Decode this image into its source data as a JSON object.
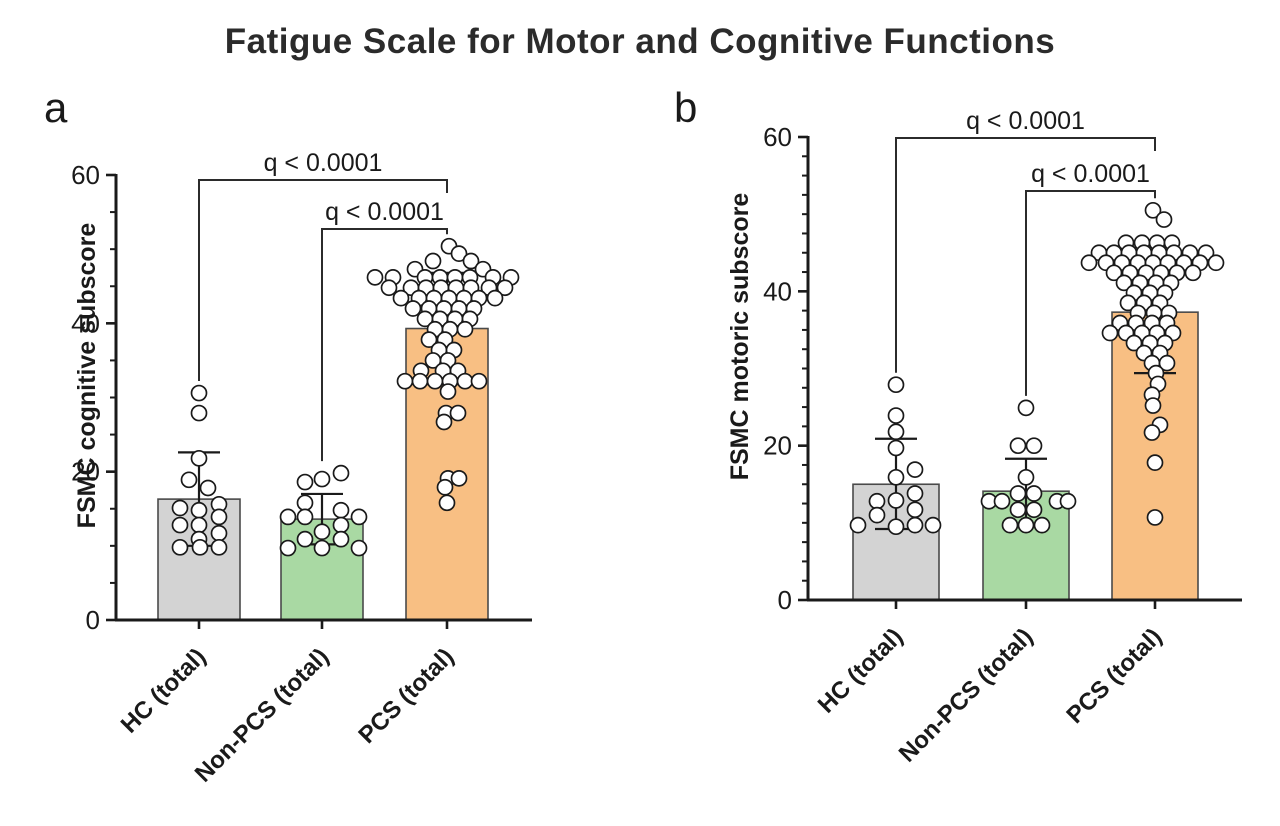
{
  "title": "Fatigue Scale for Motor and Cognitive Functions",
  "styles": {
    "axis_color": "#1a1a1a",
    "bar_edge_color": "#4a4a4a",
    "dot_fill": "#ffffff",
    "dot_stroke": "#1a1a1a",
    "bracket_color": "#2b2b2b"
  },
  "chart_data": [
    {
      "type": "bar",
      "panel_label": "a",
      "ylabel": "FSMC cognitive subscore",
      "ylim": [
        0,
        60
      ],
      "yticks": [
        0,
        20,
        40,
        60
      ],
      "minor_tick_step": 5,
      "grid": "off",
      "categories": [
        "HC (total)",
        "Non-PCS (total)",
        "PCS (total)"
      ],
      "bar_colors": [
        "#d3d3d3",
        "#a9d9a3",
        "#f8bf83"
      ],
      "means": [
        16.3,
        13.6,
        39.3
      ],
      "error_low": [
        10.0,
        10.2,
        31.8
      ],
      "error_high": [
        22.6,
        17.0,
        46.8
      ],
      "comparisons": [
        {
          "label": "q < 0.0001",
          "from": 0,
          "to": 2
        },
        {
          "label": "q < 0.0001",
          "from": 1,
          "to": 2
        }
      ],
      "points": [
        [
          [
            30.6,
            0
          ],
          [
            27.9,
            0
          ],
          [
            21.8,
            0
          ],
          [
            18.9,
            -10
          ],
          [
            17.8,
            9
          ],
          [
            15.6,
            20
          ],
          [
            15.1,
            -19
          ],
          [
            14.8,
            0
          ],
          [
            13.9,
            20
          ],
          [
            12.8,
            -19
          ],
          [
            12.8,
            0
          ],
          [
            11.7,
            20
          ],
          [
            10.9,
            0
          ],
          [
            9.8,
            -19
          ],
          [
            9.8,
            1
          ],
          [
            9.8,
            20
          ]
        ],
        [
          [
            19.8,
            19
          ],
          [
            19.0,
            0
          ],
          [
            18.6,
            -17
          ],
          [
            15.8,
            -17
          ],
          [
            14.8,
            19
          ],
          [
            13.9,
            -34
          ],
          [
            13.9,
            -17
          ],
          [
            13.9,
            37
          ],
          [
            12.8,
            19
          ],
          [
            11.9,
            0
          ],
          [
            10.9,
            -17
          ],
          [
            10.9,
            19
          ],
          [
            9.7,
            -34
          ],
          [
            9.7,
            0
          ],
          [
            9.7,
            37
          ]
        ],
        [
          [
            50.4,
            2
          ],
          [
            49.4,
            12
          ],
          [
            48.4,
            -14
          ],
          [
            48.4,
            24
          ],
          [
            47.3,
            -32
          ],
          [
            47.3,
            36
          ],
          [
            46.2,
            -72
          ],
          [
            46.2,
            -54
          ],
          [
            46.2,
            -22
          ],
          [
            46.2,
            -7
          ],
          [
            46.2,
            8
          ],
          [
            46.2,
            23
          ],
          [
            46.2,
            46
          ],
          [
            46.2,
            64
          ],
          [
            44.8,
            -58
          ],
          [
            44.8,
            -36
          ],
          [
            44.8,
            -21
          ],
          [
            44.8,
            -6
          ],
          [
            44.8,
            9
          ],
          [
            44.8,
            24
          ],
          [
            44.8,
            42
          ],
          [
            44.8,
            58
          ],
          [
            43.4,
            -46
          ],
          [
            43.4,
            -28
          ],
          [
            43.4,
            -13
          ],
          [
            43.4,
            2
          ],
          [
            43.4,
            17
          ],
          [
            43.4,
            32
          ],
          [
            43.4,
            48
          ],
          [
            42.0,
            -34
          ],
          [
            42.0,
            -18
          ],
          [
            42.0,
            -3
          ],
          [
            42.0,
            12
          ],
          [
            42.0,
            27
          ],
          [
            40.6,
            -22
          ],
          [
            40.6,
            -7
          ],
          [
            40.6,
            8
          ],
          [
            40.6,
            23
          ],
          [
            39.2,
            -12
          ],
          [
            39.2,
            3
          ],
          [
            39.2,
            18
          ],
          [
            37.8,
            -18
          ],
          [
            37.8,
            -2
          ],
          [
            36.4,
            -8
          ],
          [
            36.4,
            7
          ],
          [
            35.0,
            -14
          ],
          [
            35.0,
            1
          ],
          [
            33.6,
            -26
          ],
          [
            33.6,
            -4
          ],
          [
            33.6,
            11
          ],
          [
            32.2,
            -42
          ],
          [
            32.2,
            -27
          ],
          [
            32.2,
            -12
          ],
          [
            32.2,
            3
          ],
          [
            32.2,
            18
          ],
          [
            32.2,
            32
          ],
          [
            30.8,
            1
          ],
          [
            27.9,
            -1
          ],
          [
            27.9,
            11
          ],
          [
            26.7,
            -3
          ],
          [
            19.1,
            1
          ],
          [
            19.1,
            12
          ],
          [
            17.9,
            -2
          ],
          [
            15.8,
            0
          ]
        ]
      ]
    },
    {
      "type": "bar",
      "panel_label": "b",
      "ylabel": "FSMC motoric subscore",
      "ylim": [
        0,
        60
      ],
      "yticks": [
        0,
        20,
        40,
        60
      ],
      "minor_tick_step": 2.5,
      "grid": "off",
      "categories": [
        "HC (total)",
        "Non-PCS (total)",
        "PCS (total)"
      ],
      "bar_colors": [
        "#d3d3d3",
        "#a9d9a3",
        "#f8bf83"
      ],
      "means": [
        15.0,
        14.1,
        37.3
      ],
      "error_low": [
        9.2,
        9.8,
        29.4
      ],
      "error_high": [
        20.9,
        18.3,
        45.2
      ],
      "comparisons": [
        {
          "label": "q < 0.0001",
          "from": 0,
          "to": 2
        },
        {
          "label": "q < 0.0001",
          "from": 1,
          "to": 2
        }
      ],
      "points": [
        [
          [
            27.9,
            0
          ],
          [
            23.9,
            0
          ],
          [
            21.8,
            0
          ],
          [
            19.7,
            0
          ],
          [
            16.9,
            19
          ],
          [
            15.9,
            0
          ],
          [
            13.8,
            19
          ],
          [
            12.9,
            0
          ],
          [
            12.8,
            -19
          ],
          [
            11.7,
            19
          ],
          [
            11.0,
            -19
          ],
          [
            9.7,
            -38
          ],
          [
            9.7,
            19
          ],
          [
            9.7,
            37
          ],
          [
            9.5,
            0
          ]
        ],
        [
          [
            24.9,
            0
          ],
          [
            20.0,
            -8
          ],
          [
            20.0,
            8
          ],
          [
            15.9,
            0
          ],
          [
            13.8,
            -8
          ],
          [
            13.8,
            8
          ],
          [
            12.8,
            -37
          ],
          [
            12.8,
            -24
          ],
          [
            12.8,
            31
          ],
          [
            12.8,
            42
          ],
          [
            11.7,
            -8
          ],
          [
            11.7,
            8
          ],
          [
            9.7,
            -16
          ],
          [
            9.7,
            0
          ],
          [
            9.7,
            16
          ]
        ],
        [
          [
            50.5,
            -2
          ],
          [
            49.3,
            9
          ],
          [
            46.3,
            -29
          ],
          [
            46.3,
            -13
          ],
          [
            46.3,
            2
          ],
          [
            46.3,
            17
          ],
          [
            45.0,
            -56
          ],
          [
            45.0,
            -41
          ],
          [
            45.0,
            -26
          ],
          [
            45.0,
            -11
          ],
          [
            45.0,
            4
          ],
          [
            45.0,
            19
          ],
          [
            45.0,
            35
          ],
          [
            45.0,
            51
          ],
          [
            43.7,
            -66
          ],
          [
            43.7,
            -49
          ],
          [
            43.7,
            -33
          ],
          [
            43.7,
            -17
          ],
          [
            43.7,
            -2
          ],
          [
            43.7,
            13
          ],
          [
            43.7,
            29
          ],
          [
            43.7,
            45
          ],
          [
            43.7,
            61
          ],
          [
            42.4,
            -41
          ],
          [
            42.4,
            -25
          ],
          [
            42.4,
            -9
          ],
          [
            42.4,
            6
          ],
          [
            42.4,
            22
          ],
          [
            42.4,
            38
          ],
          [
            41.1,
            -31
          ],
          [
            41.1,
            -15
          ],
          [
            41.1,
            1
          ],
          [
            41.1,
            16
          ],
          [
            39.8,
            -21
          ],
          [
            39.8,
            -5
          ],
          [
            39.8,
            10
          ],
          [
            38.5,
            -27
          ],
          [
            38.5,
            -11
          ],
          [
            38.5,
            5
          ],
          [
            37.2,
            -17
          ],
          [
            37.2,
            -1
          ],
          [
            37.2,
            14
          ],
          [
            35.9,
            -35
          ],
          [
            35.9,
            -19
          ],
          [
            35.9,
            -3
          ],
          [
            35.9,
            12
          ],
          [
            34.6,
            -45
          ],
          [
            34.6,
            -29
          ],
          [
            34.6,
            -13
          ],
          [
            34.6,
            2
          ],
          [
            34.6,
            18
          ],
          [
            33.3,
            -21
          ],
          [
            33.3,
            -5
          ],
          [
            33.3,
            10
          ],
          [
            32.0,
            -11
          ],
          [
            32.0,
            5
          ],
          [
            30.7,
            -3
          ],
          [
            30.7,
            12
          ],
          [
            29.4,
            1
          ],
          [
            28.0,
            3
          ],
          [
            26.6,
            -3
          ],
          [
            25.2,
            -2
          ],
          [
            22.7,
            5
          ],
          [
            21.7,
            -3
          ],
          [
            17.8,
            0
          ],
          [
            10.7,
            0
          ]
        ]
      ]
    }
  ]
}
